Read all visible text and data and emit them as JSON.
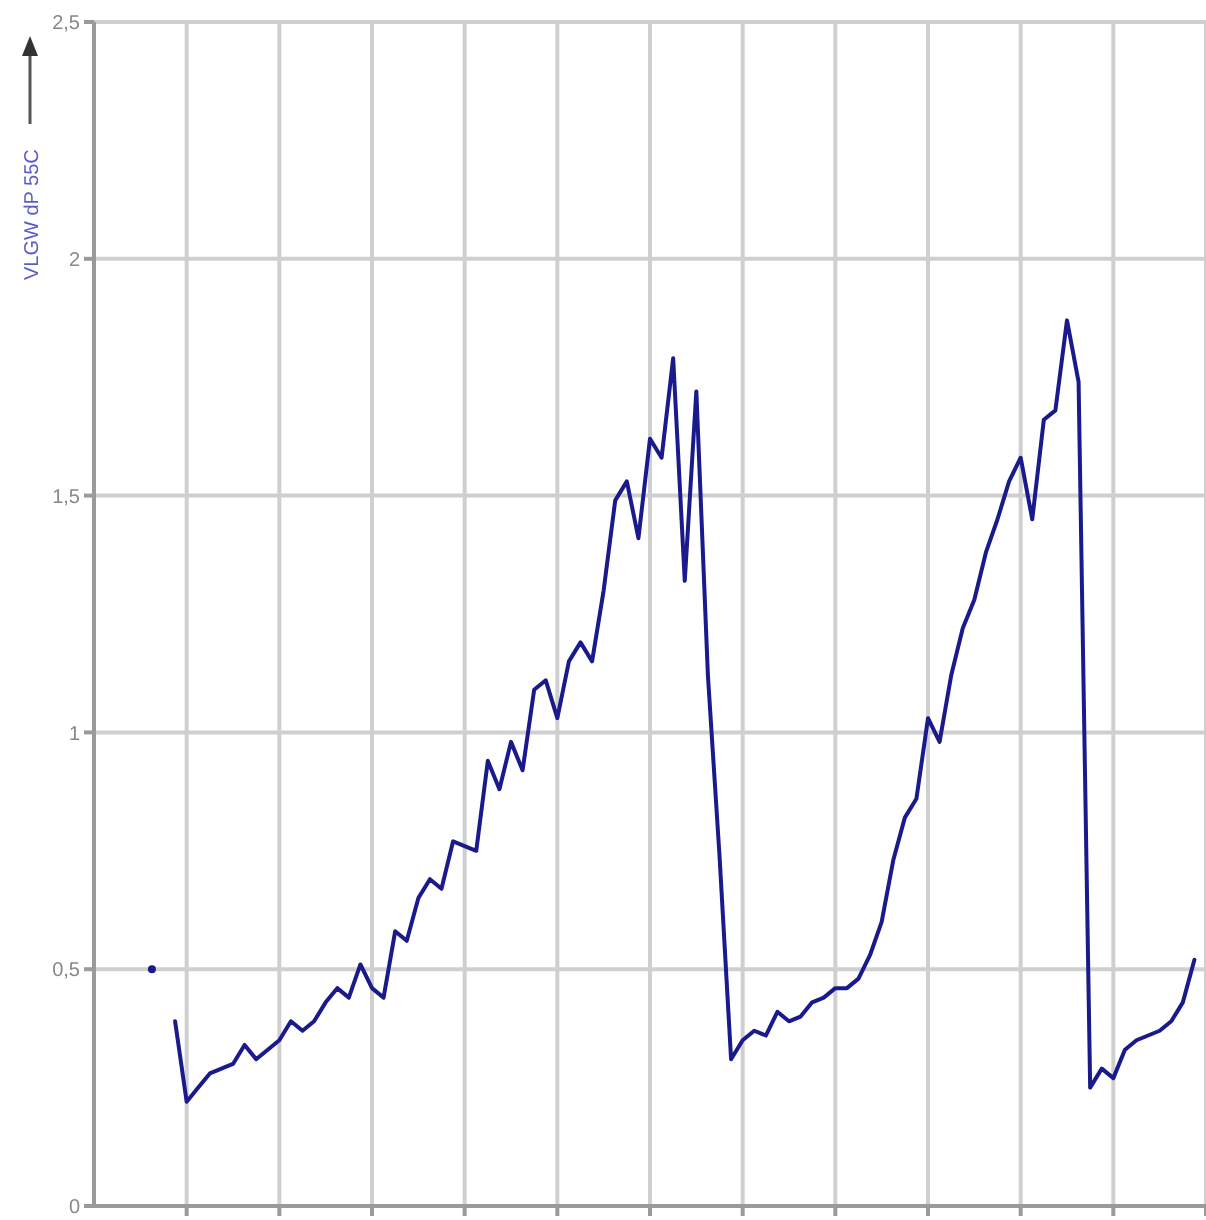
{
  "chart_data": {
    "type": "line",
    "ylabel": "VLGW  dP 55C",
    "categories": [
      null,
      null,
      null,
      null,
      null,
      null,
      null,
      null,
      null,
      null,
      null,
      null,
      null,
      null,
      null,
      null,
      null,
      null,
      null,
      null,
      null,
      null,
      null,
      null,
      null,
      null,
      null,
      null,
      null,
      null,
      null,
      null,
      null,
      null,
      null,
      null,
      null,
      null,
      null,
      null,
      null,
      null,
      null,
      null,
      null,
      null,
      null,
      null,
      null,
      null,
      null,
      null,
      null,
      null,
      null,
      null,
      null,
      null,
      null,
      null,
      null,
      null,
      null,
      null,
      null,
      null,
      null,
      null,
      null,
      null,
      null,
      null,
      null,
      null,
      null,
      null,
      null,
      null,
      null,
      null,
      null,
      null,
      null,
      null,
      null,
      null,
      null,
      null,
      null,
      null,
      null,
      null,
      null,
      null,
      null,
      null,
      null
    ],
    "ylim": [
      0,
      2.5
    ],
    "yticks": [
      0,
      {
        "value": 0.5,
        "label": "0,5"
      },
      1,
      {
        "value": 1.5,
        "label": "1,5"
      },
      2,
      {
        "value": 2.5,
        "label": "2,5"
      }
    ],
    "tick_labels": "y",
    "grid": true,
    "series": [
      {
        "color": "#1a1a8c",
        "marker": "circle",
        "values": [
          null,
          null,
          null,
          null,
          null,
          0.5,
          null,
          null,
          null,
          null,
          null,
          null,
          null,
          null,
          null,
          null,
          null,
          null,
          null,
          null,
          null,
          null,
          null,
          null,
          null,
          null,
          null,
          null,
          null,
          null,
          null,
          null,
          null,
          null,
          null,
          null,
          null,
          null,
          null,
          null,
          null,
          null,
          null,
          null,
          null,
          null,
          null,
          null,
          null,
          null,
          null,
          null,
          null,
          null,
          null,
          null,
          null,
          null,
          null,
          null,
          null,
          null,
          null,
          null,
          null,
          null,
          null,
          null,
          null,
          null,
          null,
          null,
          null,
          null,
          null,
          null,
          null,
          null,
          null,
          null,
          null,
          null,
          null,
          null,
          null,
          null,
          null,
          null,
          null,
          null,
          null,
          null,
          null,
          null,
          null,
          null,
          null
        ]
      },
      {
        "color": "#1a1a8c",
        "values": [
          null,
          null,
          null,
          null,
          null,
          null,
          null,
          0.39,
          0.22,
          0.25,
          0.28,
          0.29,
          0.3,
          0.34,
          0.31,
          0.33,
          0.35,
          0.39,
          0.37,
          0.39,
          0.43,
          0.46,
          0.44,
          0.51,
          0.46,
          0.44,
          0.58,
          0.56,
          0.65,
          0.69,
          0.67,
          0.77,
          0.76,
          0.75,
          0.94,
          0.88,
          0.98,
          0.92,
          1.09,
          1.11,
          1.03,
          1.15,
          1.19,
          1.15,
          1.3,
          1.49,
          1.53,
          1.41,
          1.62,
          1.58,
          1.79,
          1.32,
          1.72,
          1.12,
          0.74,
          0.31,
          0.35,
          0.37,
          0.36,
          0.41,
          0.39,
          0.4,
          0.43,
          0.44,
          0.46,
          0.46,
          0.48,
          0.53,
          0.6,
          0.73,
          0.82,
          0.86,
          1.03,
          0.98,
          1.12,
          1.22,
          1.28,
          1.38,
          1.45,
          1.53,
          1.58,
          1.45,
          1.66,
          1.68,
          1.87,
          1.74,
          0.25,
          0.29,
          0.27,
          0.33,
          0.35,
          0.36,
          0.37,
          0.39,
          0.43,
          0.52,
          null
        ]
      }
    ]
  }
}
